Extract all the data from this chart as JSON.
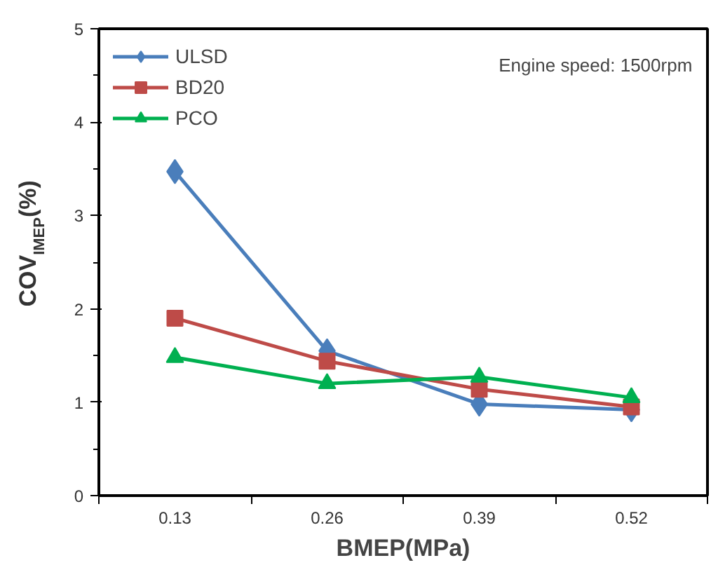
{
  "chart_data": {
    "type": "line",
    "xlabel": "BMEP(MPa)",
    "ylabel": "COV$_{IMEP}$(%)",
    "categories": [
      "0.13",
      "0.26",
      "0.39",
      "0.52"
    ],
    "series": [
      {
        "name": "ULSD",
        "color": "#4a7ebb",
        "marker": "diamond",
        "values": [
          3.47,
          1.55,
          0.98,
          0.92
        ]
      },
      {
        "name": "BD20",
        "color": "#be4b48",
        "marker": "square",
        "values": [
          1.9,
          1.44,
          1.14,
          0.95
        ]
      },
      {
        "name": "PCO",
        "color": "#00b050",
        "marker": "triangle",
        "values": [
          1.48,
          1.2,
          1.27,
          1.05
        ]
      }
    ],
    "ylim": [
      0,
      5
    ],
    "yticks": [
      0,
      1,
      2,
      3,
      4,
      5
    ],
    "grid": false,
    "legend": "top left",
    "annotations": [
      "Engine speed: 1500rpm"
    ]
  }
}
